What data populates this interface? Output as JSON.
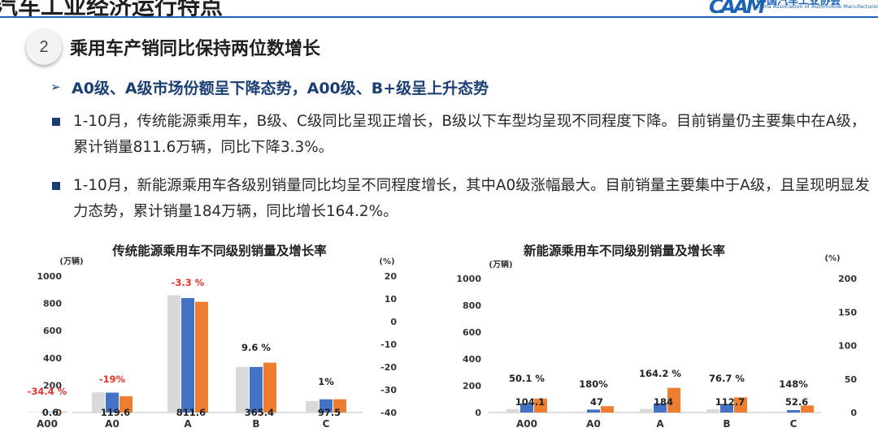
{
  "header": {
    "title": "汽车工业经济运行特点",
    "logo_mark": "CAAM",
    "logo_cn": "中国汽车工业协会",
    "logo_en": "China Association of Automobile Manufacturers"
  },
  "section": {
    "number": "2",
    "title": "乘用车产销同比保持两位数增长"
  },
  "subheading": "A0级、A级市场份额呈下降态势，A00级、B+级呈上升态势",
  "paragraphs": [
    "1-10月，传统能源乘用车，B级、C级同比呈现正增长，B级以下车型均呈现不同程度下降。目前销量仍主要集中在A级，累计销量811.6万辆，同比下降3.3%。",
    "1-10月，新能源乘用车各级别销量同比均呈不同程度增长，其中A0级涨幅最大。目前销量主要集中于A级，且呈现明显发力态势，累计销量184万辆，同比增长164.2%。"
  ],
  "colors": {
    "gray": "#d9d9d9",
    "blue": "#4472c4",
    "orange": "#ed7d31",
    "red_label": "#e8332a",
    "title_blue": "#1c3f73",
    "accent": "#1c63b7"
  },
  "chart_data": [
    {
      "type": "bar",
      "title": "传统能源乘用车不同级别销量及增长率",
      "ylabel": "(万辆)",
      "y2label": "(%)",
      "categories": [
        "A00",
        "A0",
        "A",
        "B",
        "C"
      ],
      "ylim": [
        0,
        1000
      ],
      "yticks": [
        "0",
        "200",
        "400",
        "600",
        "800",
        "1000"
      ],
      "y2lim": [
        -40,
        20
      ],
      "y2ticks": [
        "-40",
        "-30",
        "-20",
        "-10",
        "0",
        "10",
        "20"
      ],
      "series": [
        {
          "values": [
            0.9,
            148,
            860,
            335,
            85
          ]
        },
        {
          "values": [
            0.7,
            146,
            839,
            334,
            97
          ]
        },
        {
          "values": [
            0.6,
            119.6,
            811.6,
            365.4,
            97.5
          ]
        }
      ],
      "value_labels": [
        "0.6",
        "119.6",
        "811.6",
        "365.4",
        "97.5"
      ],
      "growth_labels": [
        "-34.4 %",
        "-19%",
        "-3.3 %",
        "9.6 %",
        "1%"
      ],
      "growth_label_red": [
        true,
        true,
        true,
        false,
        false
      ]
    },
    {
      "type": "bar",
      "title": "新能源乘用车不同级别销量及增长率",
      "ylabel": "(万辆)",
      "y2label": "(%)",
      "categories": [
        "A00",
        "A0",
        "A",
        "B",
        "C"
      ],
      "ylim": [
        0,
        1000
      ],
      "yticks": [
        "0",
        "200",
        "400",
        "600",
        "800",
        "1000"
      ],
      "y2lim": [
        0,
        200
      ],
      "y2ticks": [
        "0",
        "50",
        "100",
        "150",
        "200"
      ],
      "series": [
        {
          "values": [
            25,
            8,
            26,
            25,
            6
          ]
        },
        {
          "values": [
            69,
            22,
            69,
            64,
            18
          ]
        },
        {
          "values": [
            104.1,
            47,
            184,
            112.7,
            52.6
          ]
        }
      ],
      "value_labels": [
        "104.1",
        "47",
        "184",
        "112.7",
        "52.6"
      ],
      "growth_labels": [
        "50.1 %",
        "180%",
        "164.2 %",
        "76.7 %",
        "148%"
      ],
      "growth_label_red": [
        false,
        false,
        false,
        false,
        false
      ]
    }
  ]
}
